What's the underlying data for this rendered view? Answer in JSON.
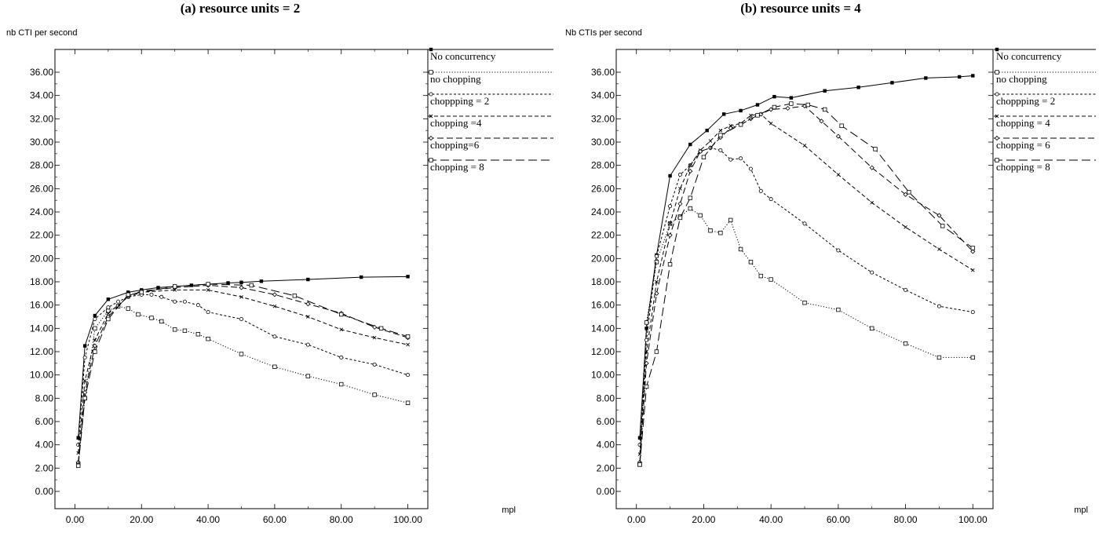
{
  "chart_data": [
    {
      "type": "line",
      "title": "(a) resource units = 2",
      "ylabel": "nb CTI per second",
      "xlabel": "mpl",
      "xlim": [
        0,
        100
      ],
      "ylim": [
        0,
        36
      ],
      "xticks": [
        "0.00",
        "20.00",
        "40.00",
        "60.00",
        "80.00",
        "100.00"
      ],
      "yticks": [
        "0.00",
        "2.00",
        "4.00",
        "6.00",
        "8.00",
        "10.00",
        "12.00",
        "14.00",
        "16.00",
        "18.00",
        "20.00",
        "22.00",
        "24.00",
        "26.00",
        "28.00",
        "30.00",
        "32.00",
        "34.00",
        "36.00"
      ],
      "series": [
        {
          "name": "No concurrency",
          "style": "solid",
          "marker": "filled-square",
          "x": [
            1,
            3,
            6,
            10,
            16,
            20,
            25,
            30,
            35,
            40,
            46,
            50,
            56,
            70,
            86,
            100
          ],
          "y": [
            4.6,
            12.5,
            15.1,
            16.5,
            17.1,
            17.3,
            17.5,
            17.6,
            17.7,
            17.8,
            17.9,
            17.95,
            18.05,
            18.2,
            18.4,
            18.45
          ]
        },
        {
          "name": "no  chopping",
          "style": "dotted",
          "marker": "open-square",
          "x": [
            1,
            3,
            6,
            10,
            13,
            16,
            19,
            23,
            26,
            30,
            33,
            37,
            40,
            50,
            60,
            70,
            80,
            90,
            100
          ],
          "y": [
            2.3,
            8.0,
            14.0,
            15.5,
            15.9,
            15.7,
            15.2,
            14.9,
            14.6,
            13.9,
            13.8,
            13.5,
            13.1,
            11.8,
            10.7,
            9.9,
            9.2,
            8.3,
            7.6
          ]
        },
        {
          "name": "choppping = 2",
          "style": "short-dash",
          "marker": "small-circle",
          "x": [
            1,
            3,
            6,
            10,
            13,
            16,
            20,
            23,
            26,
            30,
            33,
            37,
            40,
            50,
            60,
            70,
            80,
            90,
            100
          ],
          "y": [
            4.0,
            11.5,
            14.8,
            15.8,
            16.3,
            16.7,
            16.9,
            16.9,
            16.7,
            16.3,
            16.3,
            16.0,
            15.4,
            14.8,
            13.3,
            12.6,
            11.5,
            10.9,
            10.0
          ]
        },
        {
          "name": "chopping =4",
          "style": "dash",
          "marker": "x",
          "x": [
            1,
            3,
            6,
            10,
            16,
            20,
            30,
            40,
            50,
            60,
            70,
            80,
            90,
            100
          ],
          "y": [
            3.3,
            9.5,
            13.0,
            15.3,
            16.7,
            17.1,
            17.3,
            17.3,
            16.7,
            15.9,
            15.0,
            13.9,
            13.2,
            12.6
          ]
        },
        {
          "name": "chopping=6",
          "style": "long-dash",
          "marker": "diamond",
          "x": [
            1,
            3,
            6,
            10,
            16,
            20,
            30,
            40,
            50,
            60,
            70,
            80,
            90,
            100
          ],
          "y": [
            2.5,
            8.5,
            12.5,
            15.0,
            16.8,
            17.2,
            17.5,
            17.7,
            17.5,
            16.9,
            16.1,
            15.3,
            14.1,
            13.2
          ]
        },
        {
          "name": "chopping = 8",
          "style": "longer-dash",
          "marker": "open-square",
          "x": [
            1,
            3,
            6,
            10,
            16,
            20,
            30,
            40,
            53,
            66,
            80,
            92,
            100
          ],
          "y": [
            2.2,
            8.0,
            12.0,
            14.8,
            16.9,
            17.1,
            17.6,
            17.8,
            17.7,
            16.8,
            15.2,
            14.0,
            13.3
          ]
        }
      ]
    },
    {
      "type": "line",
      "title": "(b) resource units = 4",
      "ylabel": "Nb CTIs per second",
      "xlabel": "mpl",
      "xlim": [
        0,
        100
      ],
      "ylim": [
        0,
        36
      ],
      "xticks": [
        "0.00",
        "20.00",
        "40.00",
        "60.00",
        "80.00",
        "100.00"
      ],
      "yticks": [
        "0.00",
        "2.00",
        "4.00",
        "6.00",
        "8.00",
        "10.00",
        "12.00",
        "14.00",
        "16.00",
        "18.00",
        "20.00",
        "22.00",
        "24.00",
        "26.00",
        "28.00",
        "30.00",
        "32.00",
        "34.00",
        "36.00"
      ],
      "series": [
        {
          "name": "No concurrency",
          "style": "solid",
          "marker": "filled-square",
          "x": [
            1,
            3,
            6,
            10,
            16,
            21,
            26,
            31,
            36,
            41,
            46,
            56,
            66,
            76,
            86,
            96,
            100
          ],
          "y": [
            4.6,
            14.0,
            20.3,
            27.1,
            29.8,
            31.0,
            32.4,
            32.7,
            33.2,
            33.9,
            33.8,
            34.4,
            34.7,
            35.1,
            35.5,
            35.6,
            35.7
          ]
        },
        {
          "name": "no chopping",
          "style": "dotted",
          "marker": "open-square",
          "x": [
            1,
            3,
            6,
            10,
            13,
            16,
            19,
            22,
            25,
            28,
            31,
            34,
            37,
            40,
            50,
            60,
            70,
            80,
            90,
            100
          ],
          "y": [
            2.3,
            14.5,
            19.7,
            23.0,
            23.6,
            24.3,
            23.7,
            22.4,
            22.2,
            23.3,
            20.8,
            19.7,
            18.5,
            18.2,
            16.2,
            15.6,
            14.0,
            12.7,
            11.5,
            11.5
          ]
        },
        {
          "name": "choppping = 2",
          "style": "short-dash",
          "marker": "small-circle",
          "x": [
            1,
            3,
            6,
            10,
            13,
            16,
            19,
            22,
            25,
            28,
            31,
            34,
            37,
            40,
            50,
            60,
            70,
            80,
            90,
            100
          ],
          "y": [
            4.0,
            13.0,
            20.2,
            24.5,
            27.2,
            28.0,
            29.2,
            29.5,
            29.3,
            28.5,
            28.6,
            27.7,
            25.8,
            25.1,
            23.0,
            20.7,
            18.8,
            17.3,
            15.9,
            15.4
          ]
        },
        {
          "name": "chopping = 4",
          "style": "dash",
          "marker": "x",
          "x": [
            1,
            3,
            6,
            10,
            13,
            16,
            19,
            22,
            25,
            28,
            31,
            34,
            37,
            40,
            50,
            60,
            70,
            80,
            90,
            100
          ],
          "y": [
            3.2,
            12.0,
            18.0,
            23.0,
            26.0,
            28.0,
            29.3,
            30.1,
            31.0,
            31.4,
            31.6,
            32.3,
            32.4,
            31.6,
            29.7,
            27.2,
            24.8,
            22.7,
            20.8,
            19.0
          ]
        },
        {
          "name": "chopping  = 6",
          "style": "long-dash",
          "marker": "diamond",
          "x": [
            1,
            3,
            6,
            10,
            13,
            16,
            19,
            22,
            25,
            28,
            31,
            34,
            37,
            40,
            45,
            50,
            55,
            60,
            70,
            80,
            90,
            100
          ],
          "y": [
            2.5,
            11.0,
            17.0,
            22.0,
            24.7,
            27.5,
            29.2,
            29.5,
            30.4,
            31.2,
            31.5,
            32.0,
            32.4,
            32.8,
            32.9,
            33.1,
            31.8,
            30.5,
            27.8,
            25.5,
            23.7,
            20.6
          ]
        },
        {
          "name": "chopping   = 8",
          "style": "longer-dash",
          "marker": "open-square",
          "x": [
            1,
            3,
            6,
            10,
            13,
            16,
            20,
            25,
            31,
            36,
            41,
            46,
            51,
            56,
            61,
            71,
            81,
            91,
            100
          ],
          "y": [
            2.3,
            9.0,
            12.0,
            19.5,
            23.5,
            25.2,
            28.7,
            30.6,
            31.5,
            32.3,
            33.0,
            33.3,
            33.2,
            32.8,
            31.4,
            29.4,
            25.7,
            22.8,
            20.9
          ]
        }
      ]
    }
  ]
}
